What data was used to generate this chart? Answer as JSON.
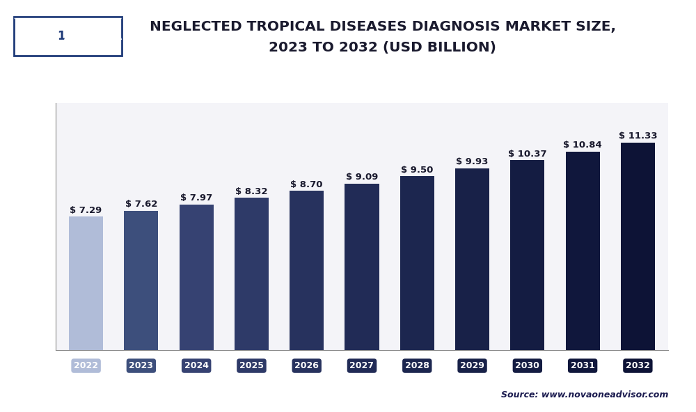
{
  "years": [
    "2022",
    "2023",
    "2024",
    "2025",
    "2026",
    "2027",
    "2028",
    "2029",
    "2030",
    "2031",
    "2032"
  ],
  "values": [
    7.29,
    7.62,
    7.97,
    8.32,
    8.7,
    9.09,
    9.5,
    9.93,
    10.37,
    10.84,
    11.33
  ],
  "labels": [
    "$ 7.29",
    "$ 7.62",
    "$ 7.97",
    "$ 8.32",
    "$ 8.70",
    "$ 9.09",
    "$ 9.50",
    "$ 9.93",
    "$ 10.37",
    "$ 10.84",
    "$ 11.33"
  ],
  "bar_colors": [
    "#b0bcd8",
    "#3d4f7c",
    "#364272",
    "#2e3a68",
    "#27325e",
    "#212b56",
    "#1c264f",
    "#182148",
    "#141c42",
    "#10173c",
    "#0d1336"
  ],
  "tick_label_colors": [
    "#b0bcd8",
    "#3d4f7c",
    "#364272",
    "#2e3a68",
    "#27325e",
    "#212b56",
    "#1c264f",
    "#182148",
    "#141c42",
    "#10173c",
    "#0d1336"
  ],
  "title_line1": "NEGLECTED TROPICAL DISEASES DIAGNOSIS MARKET SIZE,",
  "title_line2": "2023 TO 2032 (USD BILLION)",
  "title_color": "#1a1a2e",
  "title_fontsize": 14.5,
  "bar_label_fontsize": 9.5,
  "bar_label_color": "#1a1a2e",
  "ylim": [
    0,
    13.5
  ],
  "background_color": "#ffffff",
  "plot_background_color": "#f4f4f8",
  "grid_color": "#ffffff",
  "source_text": "Source: www.novaoneadvisor.com",
  "logo_bg_color": "#1e3a78",
  "logo_box1_color": "#ffffff"
}
